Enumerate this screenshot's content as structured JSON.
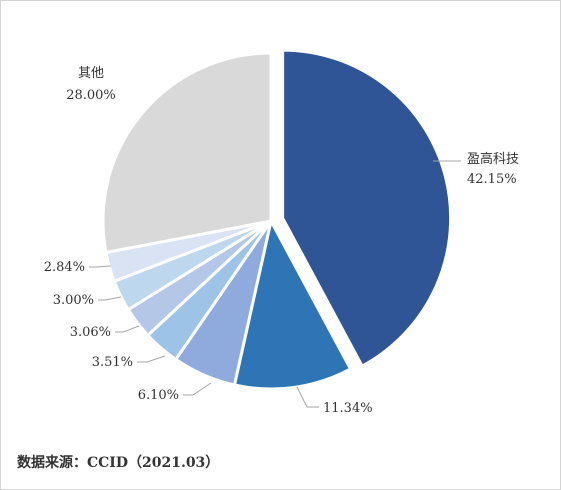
{
  "chart_data": {
    "type": "pie",
    "slices": [
      {
        "label": "盈高科技",
        "value": 42.15,
        "value_label": "42.15%",
        "color": "#2f5597"
      },
      {
        "label": "",
        "value": 11.34,
        "value_label": "11.34%",
        "color": "#2e75b6"
      },
      {
        "label": "",
        "value": 6.1,
        "value_label": "6.10%",
        "color": "#8faadc"
      },
      {
        "label": "",
        "value": 3.51,
        "value_label": "3.51%",
        "color": "#9dc3e6"
      },
      {
        "label": "",
        "value": 3.06,
        "value_label": "3.06%",
        "color": "#b4c7e7"
      },
      {
        "label": "",
        "value": 3.0,
        "value_label": "3.00%",
        "color": "#bdd7ee"
      },
      {
        "label": "",
        "value": 2.84,
        "value_label": "2.84%",
        "color": "#dae3f3"
      },
      {
        "label": "其他",
        "value": 28.0,
        "value_label": "28.00%",
        "color": "#d9d9d9"
      }
    ],
    "exploded_slice": "盈高科技",
    "legend": "none"
  },
  "source_note": "数据来源：CCID（2021.03）"
}
